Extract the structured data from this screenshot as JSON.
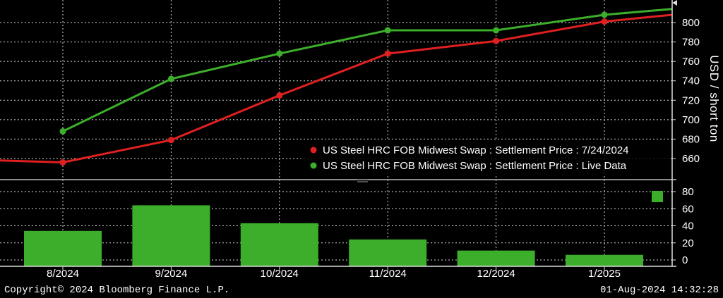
{
  "chart_data": [
    {
      "type": "line",
      "title": "",
      "xlabel": "",
      "ylabel": "USD / short ton",
      "ylim": [
        640,
        815
      ],
      "yticks": [
        660,
        680,
        700,
        720,
        740,
        760,
        780,
        800
      ],
      "x": [
        "8/2024",
        "9/2024",
        "10/2024",
        "11/2024",
        "12/2024",
        "1/2025"
      ],
      "series": [
        {
          "name": "US Steel HRC FOB Midwest Swap : Settlement Price : 7/24/2024",
          "color": "#e02020",
          "values": [
            656,
            679,
            725,
            768,
            781,
            801
          ],
          "lead_in": 658,
          "tail": 808
        },
        {
          "name": "US Steel HRC FOB Midwest Swap : Settlement Price : Live Data",
          "color": "#3dae2b",
          "values": [
            688,
            742,
            768,
            792,
            792,
            808
          ],
          "tail": 814
        }
      ]
    },
    {
      "type": "bar",
      "title": "",
      "categories": [
        "8/2024",
        "9/2024",
        "10/2024",
        "11/2024",
        "12/2024",
        "1/2025"
      ],
      "values": [
        34,
        64,
        43,
        24,
        11,
        6
      ],
      "ylim": [
        -8,
        88
      ],
      "yticks": [
        0,
        20,
        40,
        60,
        80
      ],
      "color": "#3dae2b"
    }
  ],
  "footer": {
    "copyright": "Copyright© 2024 Bloomberg Finance L.P.",
    "timestamp": "01-Aug-2024 14:32:28"
  }
}
